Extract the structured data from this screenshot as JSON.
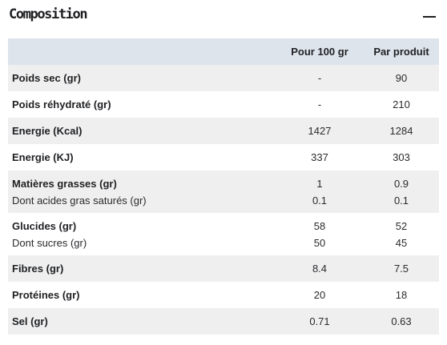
{
  "section": {
    "title": "Composition",
    "collapse_icon": "minus-icon"
  },
  "table": {
    "headers": [
      "",
      "Pour 100 gr",
      "Par produit"
    ],
    "rows": [
      {
        "label": "Poids sec (gr)",
        "per100": "-",
        "perProduct": "90"
      },
      {
        "label": "Poids réhydraté (gr)",
        "per100": "-",
        "perProduct": "210"
      },
      {
        "label": "Energie (Kcal)",
        "per100": "1427",
        "perProduct": "1284"
      },
      {
        "label": "Energie (KJ)",
        "per100": "337",
        "perProduct": "303"
      },
      {
        "label": "Matières grasses (gr)",
        "per100": "1",
        "perProduct": "0.9",
        "sub": {
          "label": "Dont acides gras saturés (gr)",
          "per100": "0.1",
          "perProduct": "0.1"
        }
      },
      {
        "label": "Glucides (gr)",
        "per100": "58",
        "perProduct": "52",
        "sub": {
          "label": "Dont sucres (gr)",
          "per100": "50",
          "perProduct": "45"
        }
      },
      {
        "label": "Fibres (gr)",
        "per100": "8.4",
        "perProduct": "7.5"
      },
      {
        "label": "Protéines (gr)",
        "per100": "20",
        "perProduct": "18"
      },
      {
        "label": "Sel (gr)",
        "per100": "0.71",
        "perProduct": "0.63"
      }
    ]
  },
  "colors": {
    "header_bg": "#dee4ec",
    "stripe_bg": "#efefef",
    "text": "#1f2023"
  }
}
